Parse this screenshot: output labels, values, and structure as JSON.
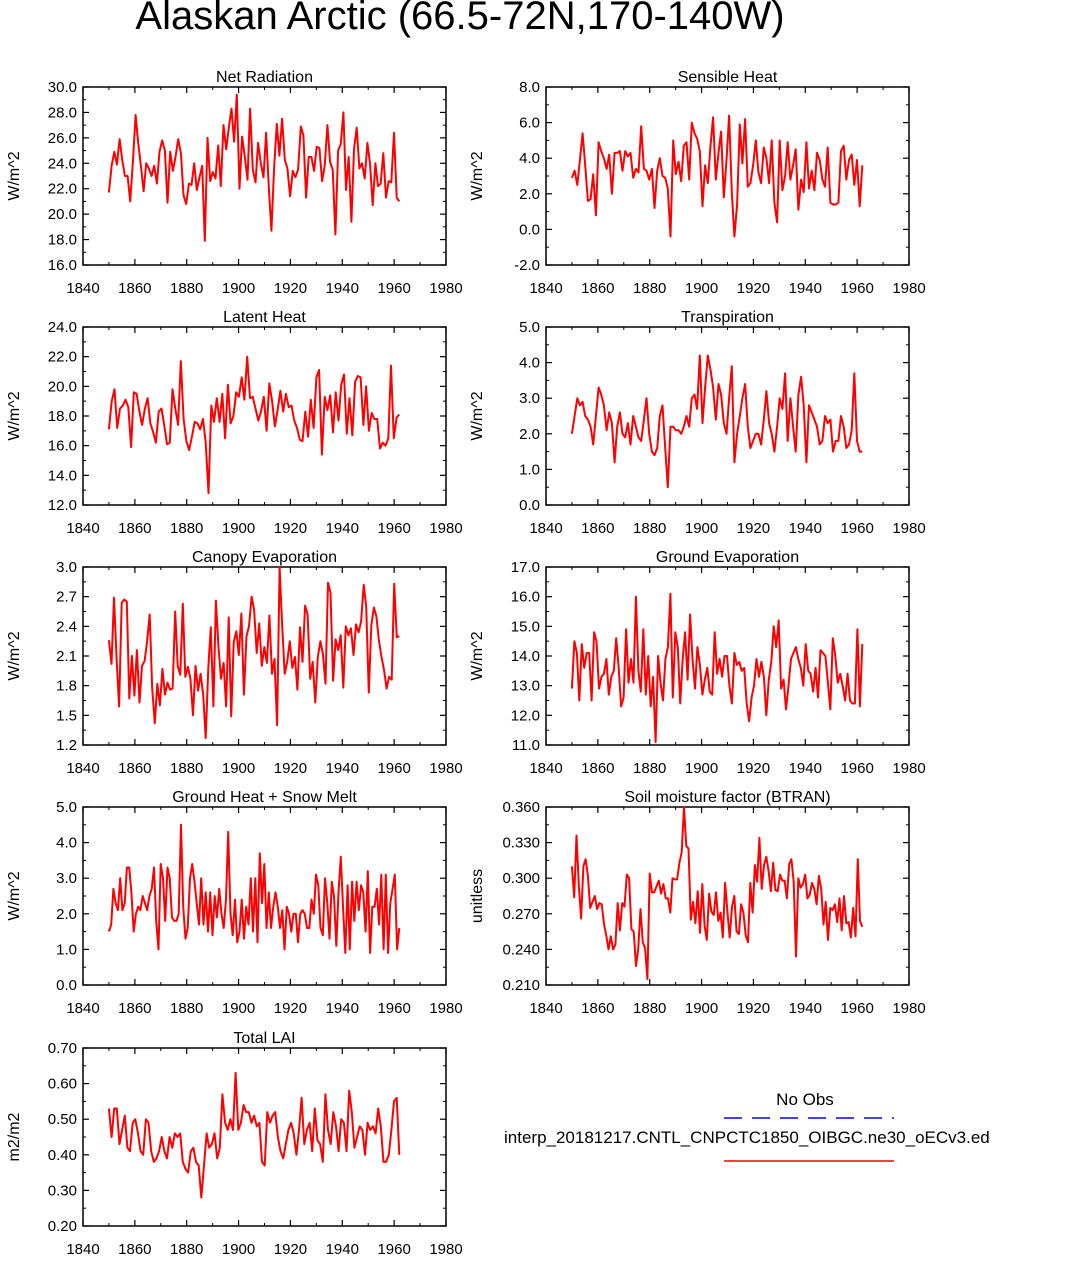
{
  "figure_title": "Alaskan Arctic (66.5-72N,170-140W)",
  "colors": {
    "series": "#ff0000",
    "obs": "#0000ff",
    "axis": "#000000"
  },
  "legend": {
    "title": "No Obs",
    "series_label": "interp_20181217.CNTL_CNPCTC1850_OIBGC.ne30_oECv3.ed"
  },
  "chart_data": [
    {
      "type": "line",
      "title": "Net Radiation",
      "ylabel": "W/m^2",
      "xlim": [
        1840,
        1980
      ],
      "xticks": [
        1840,
        1860,
        1880,
        1900,
        1920,
        1940,
        1960,
        1980
      ],
      "ylim": [
        16,
        30
      ],
      "yticks": [
        "16.0",
        "18.0",
        "20.0",
        "22.0",
        "24.0",
        "26.0",
        "28.0",
        "30.0"
      ],
      "x_start": 1850,
      "y": [
        21.7,
        23.8,
        24.9,
        23.9,
        25.9,
        24.3,
        23.0,
        23.0,
        21.0,
        24.1,
        27.8,
        25.6,
        23.8,
        21.8,
        24.0,
        23.6,
        23.0,
        23.8,
        22.4,
        24.9,
        25.8,
        25.0,
        20.9,
        24.9,
        23.4,
        24.5,
        25.9,
        24.8,
        21.5,
        20.8,
        22.4,
        22.3,
        24.0,
        21.9,
        22.9,
        23.8,
        17.9,
        26.0,
        22.6,
        23.3,
        22.8,
        25.4,
        22.2,
        27.0,
        25.1,
        26.8,
        28.3,
        25.7,
        29.4,
        22.0,
        26.1,
        24.5,
        22.7,
        28.3,
        23.5,
        22.5,
        25.6,
        24.0,
        22.9,
        26.4,
        22.1,
        18.7,
        23.6,
        27.1,
        24.6,
        27.5,
        24.3,
        23.6,
        21.4,
        23.4,
        22.9,
        23.5,
        26.9,
        26.2,
        21.3,
        24.5,
        24.5,
        23.4,
        25.3,
        25.2,
        22.6,
        23.8,
        27.0,
        24.1,
        23.5,
        18.4,
        25.0,
        25.5,
        28.0,
        21.9,
        24.5,
        19.4,
        25.1,
        26.8,
        23.6,
        24.0,
        22.8,
        25.6,
        24.0,
        20.7,
        24.0,
        22.2,
        22.4,
        24.8,
        21.3,
        22.6,
        22.5,
        26.4,
        21.3,
        21.0
      ]
    },
    {
      "type": "line",
      "title": "Sensible Heat",
      "ylabel": "W/m^2",
      "xlim": [
        1840,
        1980
      ],
      "xticks": [
        1840,
        1860,
        1880,
        1900,
        1920,
        1940,
        1960,
        1980
      ],
      "ylim": [
        -2,
        8
      ],
      "yticks": [
        "-2.0",
        "0.0",
        "2.0",
        "4.0",
        "6.0",
        "8.0"
      ],
      "x_start": 1850,
      "y": [
        2.9,
        3.3,
        2.5,
        3.9,
        5.4,
        3.6,
        1.6,
        1.7,
        3.1,
        0.8,
        4.9,
        4.4,
        4.0,
        3.4,
        4.2,
        2.0,
        4.3,
        4.3,
        4.4,
        3.3,
        4.4,
        4.1,
        4.3,
        2.9,
        3.4,
        3.2,
        5.8,
        3.4,
        3.3,
        2.8,
        3.4,
        1.2,
        3.3,
        4.0,
        3.0,
        2.9,
        2.3,
        -0.4,
        5.0,
        3.1,
        3.8,
        2.7,
        4.7,
        4.9,
        2.8,
        6.0,
        5.4,
        5.1,
        4.4,
        1.3,
        3.6,
        2.6,
        4.7,
        6.3,
        2.8,
        4.3,
        5.5,
        1.8,
        3.9,
        6.4,
        2.1,
        -0.4,
        1.4,
        5.9,
        3.7,
        6.2,
        2.4,
        2.6,
        3.6,
        5.0,
        3.2,
        2.6,
        4.6,
        4.0,
        2.6,
        5.0,
        1.5,
        0.4,
        5.0,
        2.2,
        3.0,
        4.9,
        2.8,
        3.6,
        4.5,
        1.1,
        2.8,
        2.1,
        4.9,
        2.3,
        3.3,
        2.2,
        4.3,
        3.9,
        2.8,
        2.4,
        4.6,
        1.5,
        1.4,
        1.4,
        1.5,
        4.4,
        4.7,
        2.8,
        3.9,
        4.2,
        2.5,
        3.9,
        1.3,
        3.6
      ]
    },
    {
      "type": "line",
      "title": "Latent Heat",
      "ylabel": "W/m^2",
      "xlim": [
        1840,
        1980
      ],
      "xticks": [
        1840,
        1860,
        1880,
        1900,
        1920,
        1940,
        1960,
        1980
      ],
      "ylim": [
        12,
        24
      ],
      "yticks": [
        "12.0",
        "14.0",
        "16.0",
        "18.0",
        "20.0",
        "22.0",
        "24.0"
      ],
      "x_start": 1850,
      "y": [
        17.1,
        19.0,
        19.8,
        17.2,
        18.5,
        18.7,
        19.1,
        18.6,
        15.9,
        19.6,
        19.5,
        18.3,
        17.4,
        18.5,
        19.2,
        17.5,
        16.9,
        16.2,
        18.3,
        18.5,
        17.4,
        16.1,
        16.2,
        19.8,
        18.5,
        17.4,
        21.7,
        17.8,
        16.3,
        15.7,
        16.6,
        17.6,
        17.5,
        17.1,
        17.8,
        16.2,
        12.8,
        18.7,
        17.6,
        19.2,
        17.6,
        19.5,
        16.5,
        20.1,
        17.5,
        18.0,
        19.6,
        19.3,
        20.6,
        19.1,
        22.0,
        19.2,
        19.3,
        18.5,
        17.7,
        18.3,
        19.3,
        17.0,
        20.2,
        19.0,
        17.3,
        18.4,
        19.7,
        18.3,
        19.5,
        18.6,
        18.7,
        17.7,
        17.2,
        16.4,
        16.3,
        18.3,
        16.6,
        19.1,
        17.2,
        20.6,
        21.1,
        15.4,
        19.3,
        18.4,
        19.4,
        16.9,
        19.6,
        17.7,
        20.1,
        20.8,
        16.8,
        19.2,
        16.7,
        20.3,
        20.7,
        20.6,
        17.4,
        20.0,
        17.0,
        18.2,
        17.8,
        17.8,
        15.8,
        16.2,
        16.0,
        16.5,
        21.4,
        16.5,
        17.9,
        18.1
      ]
    },
    {
      "type": "line",
      "title": "Transpiration",
      "ylabel": "W/m^2",
      "xlim": [
        1840,
        1980
      ],
      "xticks": [
        1840,
        1860,
        1880,
        1900,
        1920,
        1940,
        1960,
        1980
      ],
      "ylim": [
        0,
        5
      ],
      "yticks": [
        "0.0",
        "1.0",
        "2.0",
        "3.0",
        "4.0",
        "5.0"
      ],
      "x_start": 1850,
      "y": [
        2.0,
        2.5,
        3.0,
        2.8,
        2.9,
        2.5,
        2.4,
        2.2,
        1.7,
        2.5,
        3.3,
        3.1,
        2.8,
        2.1,
        2.6,
        2.3,
        1.2,
        2.2,
        2.6,
        2.0,
        1.9,
        2.3,
        1.7,
        2.5,
        2.2,
        1.9,
        1.8,
        2.4,
        3.0,
        2.0,
        1.5,
        1.4,
        1.6,
        2.5,
        2.8,
        1.6,
        0.5,
        2.2,
        2.2,
        2.1,
        2.1,
        2.0,
        2.2,
        2.5,
        2.2,
        3.0,
        3.1,
        2.7,
        4.2,
        2.3,
        3.3,
        4.2,
        3.8,
        3.3,
        2.4,
        3.4,
        3.1,
        2.3,
        2.0,
        3.0,
        3.9,
        1.2,
        2.0,
        2.5,
        3.0,
        3.4,
        2.2,
        1.6,
        1.8,
        2.0,
        2.0,
        1.7,
        2.4,
        3.2,
        2.3,
        2.0,
        1.5,
        2.2,
        3.0,
        2.7,
        3.7,
        1.8,
        3.0,
        2.2,
        1.5,
        3.1,
        3.6,
        2.8,
        1.2,
        2.8,
        2.6,
        2.4,
        2.2,
        1.7,
        1.8,
        2.5,
        2.3,
        2.4,
        1.5,
        1.8,
        1.8,
        2.5,
        2.2,
        1.6,
        1.7,
        2.1,
        3.7,
        1.8,
        1.5,
        1.5
      ]
    },
    {
      "type": "line",
      "title": "Canopy Evaporation",
      "ylabel": "W/m^2",
      "xlim": [
        1840,
        1980
      ],
      "xticks": [
        1840,
        1860,
        1880,
        1900,
        1920,
        1940,
        1960,
        1980
      ],
      "ylim": [
        1.2,
        3.0
      ],
      "yticks": [
        "1.2",
        "1.5",
        "1.8",
        "2.1",
        "2.4",
        "2.7",
        "3.0"
      ],
      "x_start": 1850,
      "y": [
        2.26,
        2.02,
        2.69,
        2.07,
        1.59,
        2.64,
        2.67,
        2.65,
        1.67,
        2.1,
        1.7,
        2.16,
        1.63,
        2.0,
        2.05,
        2.25,
        2.52,
        1.77,
        1.42,
        1.82,
        1.6,
        1.97,
        1.71,
        1.83,
        1.76,
        1.77,
        2.55,
        2.0,
        1.91,
        2.63,
        1.89,
        1.99,
        1.87,
        1.5,
        2.0,
        1.75,
        1.92,
        1.71,
        1.27,
        1.98,
        2.39,
        1.59,
        2.66,
        2.19,
        1.87,
        2.03,
        1.59,
        2.49,
        1.49,
        2.24,
        2.35,
        2.11,
        2.53,
        1.71,
        2.3,
        2.4,
        2.7,
        2.57,
        2.13,
        2.43,
        2.0,
        2.19,
        2.03,
        2.51,
        1.92,
        2.07,
        1.4,
        3.0,
        2.42,
        1.92,
        2.04,
        2.25,
        1.98,
        2.09,
        1.76,
        2.39,
        2.04,
        2.61,
        2.52,
        1.87,
        2.04,
        1.63,
        2.09,
        2.25,
        2.12,
        1.82,
        2.84,
        2.74,
        1.85,
        2.27,
        2.16,
        2.31,
        1.78,
        2.4,
        2.31,
        2.38,
        2.11,
        2.42,
        2.34,
        2.45,
        2.82,
        2.6,
        1.73,
        2.41,
        2.59,
        2.5,
        2.26,
        2.09,
        1.96,
        1.77,
        1.89,
        1.86,
        2.83,
        2.29,
        2.3
      ]
    },
    {
      "type": "line",
      "title": "Ground Evaporation",
      "ylabel": "W/m^2",
      "xlim": [
        1840,
        1980
      ],
      "xticks": [
        1840,
        1860,
        1880,
        1900,
        1920,
        1940,
        1960,
        1980
      ],
      "ylim": [
        11,
        17
      ],
      "yticks": [
        "11.0",
        "12.0",
        "13.0",
        "14.0",
        "15.0",
        "16.0",
        "17.0"
      ],
      "x_start": 1850,
      "y": [
        12.9,
        14.5,
        14.1,
        12.5,
        14.4,
        13.6,
        14.1,
        14.1,
        12.5,
        14.8,
        14.5,
        12.9,
        13.3,
        13.4,
        13.9,
        12.7,
        13.3,
        13.5,
        14.6,
        13.6,
        12.3,
        12.6,
        14.9,
        13.1,
        13.9,
        13.1,
        16.0,
        13.5,
        12.8,
        14.9,
        12.7,
        14.0,
        12.3,
        13.3,
        11.1,
        14.0,
        13.1,
        12.5,
        13.9,
        14.3,
        16.1,
        12.6,
        14.8,
        14.3,
        12.4,
        13.9,
        14.8,
        13.2,
        15.4,
        13.9,
        12.9,
        14.3,
        13.7,
        12.7,
        13.2,
        13.6,
        12.8,
        12.7,
        14.8,
        13.4,
        13.9,
        13.3,
        14.0,
        14.0,
        13.0,
        12.4,
        14.1,
        13.7,
        13.8,
        13.5,
        13.6,
        12.4,
        11.8,
        12.6,
        13.0,
        13.9,
        13.3,
        13.8,
        13.3,
        12.0,
        13.2,
        13.8,
        15.0,
        14.3,
        15.2,
        12.9,
        13.2,
        12.2,
        13.0,
        13.9,
        14.1,
        14.3,
        13.9,
        13.6,
        13.0,
        14.4,
        13.5,
        13.4,
        12.8,
        13.6,
        12.6,
        14.2,
        14.1,
        14.0,
        13.1,
        12.2,
        14.6,
        14.0,
        13.1,
        13.4,
        13.0,
        12.5,
        13.4,
        12.5,
        12.4,
        12.4,
        14.9,
        12.3,
        14.4
      ]
    },
    {
      "type": "line",
      "title": "Ground Heat + Snow Melt",
      "ylabel": "W/m^2",
      "xlim": [
        1840,
        1980
      ],
      "xticks": [
        1840,
        1860,
        1880,
        1900,
        1920,
        1940,
        1960,
        1980
      ],
      "ylim": [
        0,
        5
      ],
      "yticks": [
        "0.0",
        "1.0",
        "2.0",
        "3.0",
        "4.0",
        "5.0"
      ],
      "x_start": 1850,
      "y": [
        1.5,
        1.7,
        2.7,
        2.3,
        2.1,
        3.0,
        2.1,
        2.3,
        3.3,
        3.3,
        2.6,
        1.5,
        2.0,
        2.2,
        2.1,
        2.5,
        2.3,
        2.1,
        2.5,
        2.7,
        3.3,
        1.8,
        1.0,
        3.4,
        3.0,
        1.8,
        3.3,
        3.0,
        1.9,
        1.8,
        1.8,
        2.0,
        4.5,
        2.2,
        1.3,
        1.6,
        3.0,
        3.4,
        2.9,
        2.3,
        1.7,
        3.0,
        1.7,
        2.6,
        1.5,
        2.6,
        1.4,
        2.5,
        1.9,
        2.7,
        2.0,
        1.6,
        2.4,
        4.3,
        2.0,
        1.4,
        2.4,
        1.2,
        1.5,
        2.4,
        1.3,
        2.2,
        1.7,
        3.0,
        1.5,
        3.0,
        1.2,
        3.7,
        2.3,
        3.4,
        1.6,
        2.6,
        1.6,
        2.2,
        2.6,
        2.2,
        1.6,
        2.1,
        1.0,
        2.2,
        2.0,
        1.5,
        2.0,
        2.0,
        1.2,
        2.0,
        2.1,
        2.0,
        1.6,
        1.6,
        2.4,
        2.0,
        3.1,
        2.8,
        1.6,
        1.4,
        3.0,
        2.3,
        1.3,
        2.9,
        2.5,
        1.1,
        2.6,
        3.6,
        2.2,
        0.9,
        2.8,
        1.0,
        2.9,
        1.8,
        2.9,
        2.1,
        2.8,
        2.6,
        1.5,
        3.2,
        0.9,
        2.2,
        2.2,
        2.7,
        1.7,
        3.1,
        1.0,
        3.1,
        0.9,
        2.3,
        2.7,
        3.1,
        1.0,
        1.6
      ]
    },
    {
      "type": "line",
      "title": "Soil moisture factor (BTRAN)",
      "ylabel": "unitless",
      "xlim": [
        1840,
        1980
      ],
      "xticks": [
        1840,
        1860,
        1880,
        1900,
        1920,
        1940,
        1960,
        1980
      ],
      "ylim": [
        0.21,
        0.36
      ],
      "yticks": [
        "0.210",
        "0.240",
        "0.270",
        "0.300",
        "0.330",
        "0.360"
      ],
      "x_start": 1850,
      "y": [
        0.31,
        0.284,
        0.336,
        0.294,
        0.266,
        0.31,
        0.316,
        0.302,
        0.275,
        0.28,
        0.285,
        0.274,
        0.279,
        0.278,
        0.262,
        0.252,
        0.24,
        0.251,
        0.24,
        0.244,
        0.279,
        0.256,
        0.279,
        0.276,
        0.303,
        0.3,
        0.257,
        0.255,
        0.226,
        0.24,
        0.274,
        0.246,
        0.241,
        0.215,
        0.304,
        0.288,
        0.288,
        0.293,
        0.298,
        0.287,
        0.295,
        0.283,
        0.283,
        0.271,
        0.3,
        0.299,
        0.299,
        0.313,
        0.322,
        0.36,
        0.327,
        0.325,
        0.265,
        0.28,
        0.262,
        0.289,
        0.254,
        0.295,
        0.26,
        0.248,
        0.287,
        0.272,
        0.269,
        0.288,
        0.264,
        0.271,
        0.25,
        0.296,
        0.272,
        0.25,
        0.276,
        0.285,
        0.255,
        0.253,
        0.278,
        0.271,
        0.252,
        0.246,
        0.296,
        0.271,
        0.311,
        0.297,
        0.334,
        0.291,
        0.311,
        0.318,
        0.306,
        0.289,
        0.313,
        0.29,
        0.289,
        0.303,
        0.298,
        0.298,
        0.283,
        0.312,
        0.316,
        0.297,
        0.234,
        0.3,
        0.292,
        0.295,
        0.303,
        0.283,
        0.286,
        0.296,
        0.291,
        0.278,
        0.302,
        0.291,
        0.261,
        0.28,
        0.248,
        0.275,
        0.273,
        0.278,
        0.263,
        0.283,
        0.256,
        0.285,
        0.262,
        0.263,
        0.25,
        0.275,
        0.251,
        0.316,
        0.264,
        0.259
      ]
    },
    {
      "type": "line",
      "title": "Total LAI",
      "ylabel": "m2/m2",
      "xlim": [
        1840,
        1980
      ],
      "xticks": [
        1840,
        1860,
        1880,
        1900,
        1920,
        1940,
        1960,
        1980
      ],
      "ylim": [
        0.2,
        0.7
      ],
      "yticks": [
        "0.20",
        "0.30",
        "0.40",
        "0.50",
        "0.60",
        "0.70"
      ],
      "x_start": 1850,
      "y": [
        0.53,
        0.45,
        0.53,
        0.53,
        0.43,
        0.47,
        0.51,
        0.42,
        0.41,
        0.49,
        0.5,
        0.46,
        0.41,
        0.4,
        0.5,
        0.49,
        0.41,
        0.38,
        0.39,
        0.41,
        0.45,
        0.41,
        0.39,
        0.45,
        0.42,
        0.46,
        0.45,
        0.46,
        0.38,
        0.36,
        0.35,
        0.41,
        0.42,
        0.38,
        0.37,
        0.28,
        0.37,
        0.46,
        0.42,
        0.43,
        0.46,
        0.39,
        0.42,
        0.57,
        0.49,
        0.47,
        0.5,
        0.47,
        0.63,
        0.47,
        0.49,
        0.54,
        0.52,
        0.52,
        0.49,
        0.51,
        0.48,
        0.49,
        0.38,
        0.37,
        0.52,
        0.49,
        0.51,
        0.52,
        0.45,
        0.41,
        0.39,
        0.43,
        0.47,
        0.49,
        0.46,
        0.4,
        0.47,
        0.56,
        0.43,
        0.47,
        0.49,
        0.41,
        0.53,
        0.44,
        0.43,
        0.38,
        0.57,
        0.47,
        0.43,
        0.52,
        0.48,
        0.41,
        0.5,
        0.49,
        0.41,
        0.58,
        0.52,
        0.42,
        0.45,
        0.48,
        0.47,
        0.4,
        0.49,
        0.47,
        0.48,
        0.46,
        0.53,
        0.48,
        0.38,
        0.38,
        0.4,
        0.47,
        0.55,
        0.56,
        0.4
      ]
    }
  ]
}
